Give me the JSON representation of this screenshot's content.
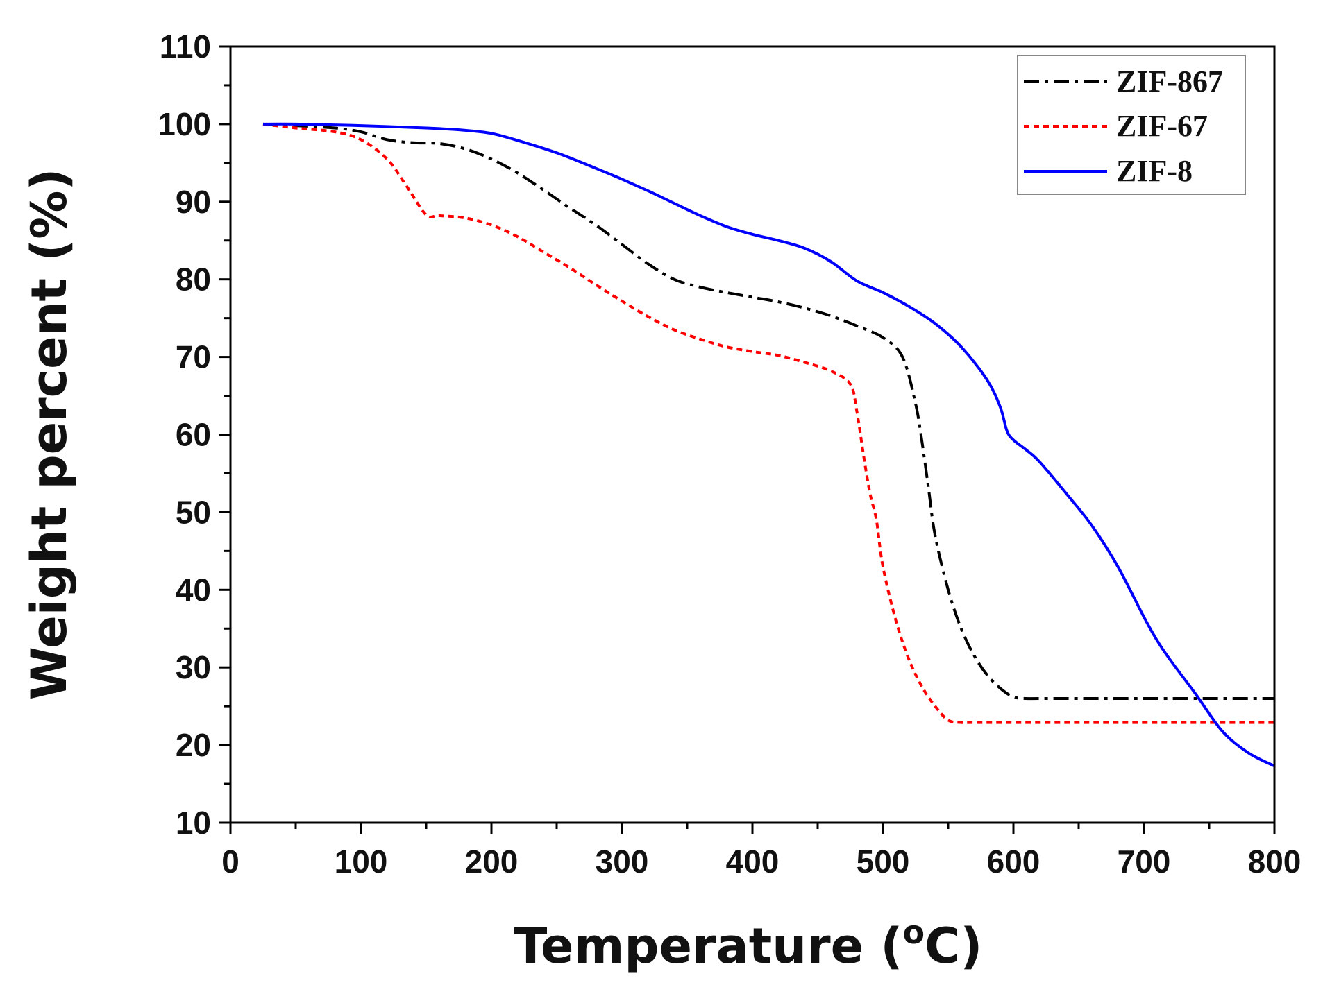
{
  "chart_data": {
    "type": "line",
    "title": "",
    "xlabel": "Temperature (",
    "xlabel_sup": "o",
    "xlabel_unit": "C)",
    "ylabel": "Weight percent (%)",
    "xlim": [
      0,
      800
    ],
    "ylim": [
      10,
      110
    ],
    "xticks": [
      "0",
      "100",
      "200",
      "300",
      "400",
      "500",
      "600",
      "700",
      "800"
    ],
    "yticks": [
      "10",
      "20",
      "30",
      "40",
      "50",
      "60",
      "70",
      "80",
      "90",
      "100",
      "110"
    ],
    "grid": false,
    "legend_position": "top-right",
    "series": [
      {
        "name": "ZIF-867",
        "color": "#000000",
        "style": "dash-dot",
        "x": [
          25,
          50,
          80,
          100,
          120,
          140,
          160,
          180,
          200,
          220,
          240,
          260,
          280,
          300,
          320,
          340,
          360,
          380,
          400,
          420,
          440,
          460,
          480,
          500,
          515,
          525,
          530,
          535,
          540,
          550,
          560,
          570,
          580,
          590,
          600,
          610,
          620,
          650,
          700,
          750,
          800
        ],
        "y": [
          100,
          99.8,
          99.5,
          99,
          98,
          97.6,
          97.5,
          96.8,
          95.5,
          93.7,
          91.5,
          89.2,
          87,
          84.5,
          82,
          80,
          79,
          78.3,
          77.7,
          77.1,
          76.3,
          75.3,
          74,
          72.5,
          70,
          64,
          59,
          53,
          47,
          40,
          35,
          31.5,
          29,
          27.3,
          26.2,
          26,
          26,
          26,
          26,
          26,
          26
        ]
      },
      {
        "name": "ZIF-67",
        "color": "#ff0000",
        "style": "dotted",
        "x": [
          25,
          50,
          80,
          100,
          120,
          135,
          150,
          160,
          180,
          200,
          220,
          240,
          260,
          280,
          300,
          320,
          340,
          360,
          380,
          400,
          420,
          440,
          460,
          475,
          480,
          485,
          490,
          495,
          500,
          510,
          520,
          530,
          540,
          550,
          560,
          570,
          600,
          650,
          700,
          750,
          800
        ],
        "y": [
          100,
          99.5,
          99,
          98,
          95.5,
          92,
          88.3,
          88.2,
          87.9,
          87,
          85.5,
          83.5,
          81.5,
          79.3,
          77.2,
          75.2,
          73.5,
          72.3,
          71.3,
          70.7,
          70.2,
          69.3,
          68.2,
          66.5,
          63,
          57.5,
          52.5,
          49,
          43,
          36,
          31,
          27.5,
          25,
          23.2,
          22.9,
          22.9,
          22.9,
          22.9,
          22.9,
          22.9,
          22.9
        ]
      },
      {
        "name": "ZIF-8",
        "color": "#0000ff",
        "style": "solid",
        "x": [
          25,
          50,
          100,
          150,
          180,
          200,
          220,
          250,
          280,
          300,
          320,
          340,
          360,
          380,
          400,
          420,
          440,
          460,
          480,
          500,
          520,
          540,
          560,
          580,
          590,
          595,
          600,
          610,
          620,
          640,
          660,
          680,
          700,
          710,
          720,
          740,
          760,
          780,
          800
        ],
        "y": [
          100,
          100,
          99.8,
          99.5,
          99.2,
          98.8,
          97.9,
          96.3,
          94.3,
          92.9,
          91.4,
          89.8,
          88.2,
          86.8,
          85.8,
          85,
          84,
          82.3,
          79.8,
          78.3,
          76.5,
          74.3,
          71.3,
          67,
          63.5,
          60.5,
          59.3,
          58,
          56.5,
          52.5,
          48.3,
          43,
          36.5,
          33.5,
          31,
          26.5,
          21.8,
          19,
          17.3
        ]
      }
    ]
  }
}
